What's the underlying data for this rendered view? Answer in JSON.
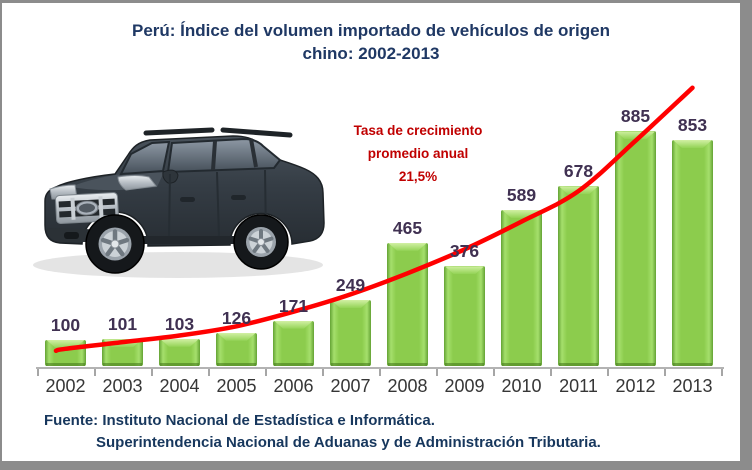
{
  "title": {
    "line1": "Perú: Índice del volumen importado de vehículos de origen",
    "line2": "chino: 2002-2013"
  },
  "annotation": {
    "line1": "Tasa de crecimiento",
    "line2": "promedio anual",
    "line3": "21,5%"
  },
  "source": {
    "line1": "Fuente: Instituto Nacional de Estadística e Informática.",
    "line2": "Superintendencia Nacional de Aduanas y de Administración Tributaria."
  },
  "car_image": {
    "name": "dark-suv-photo",
    "alt": "Camioneta SUV de color gris oscuro"
  },
  "chart_data": {
    "type": "bar",
    "title": "Perú: Índice del volumen importado de vehículos de origen chino: 2002-2013",
    "xlabel": "",
    "ylabel": "",
    "categories": [
      "2002",
      "2003",
      "2004",
      "2005",
      "2006",
      "2007",
      "2008",
      "2009",
      "2010",
      "2011",
      "2012",
      "2013"
    ],
    "values": [
      100,
      101,
      103,
      126,
      171,
      249,
      465,
      376,
      589,
      678,
      885,
      853
    ],
    "ylim": [
      0,
      1100
    ],
    "grid": false,
    "legend_position": "none",
    "data_labels": true,
    "colors": {
      "bar": "#8CCC4D",
      "bar_edge": "#64A334",
      "value_label": "#403152",
      "axis": "#A6A6A6",
      "trend": "#FF0000",
      "title": "#1F3864",
      "annotation": "#C00000"
    },
    "trend_line": {
      "label": "Tasa de crecimiento promedio anual 21,5%",
      "growth_rate": "21,5%",
      "fitted_values": [
        65,
        90,
        115,
        150,
        205,
        270,
        350,
        440,
        545,
        660,
        850,
        1050
      ]
    }
  }
}
